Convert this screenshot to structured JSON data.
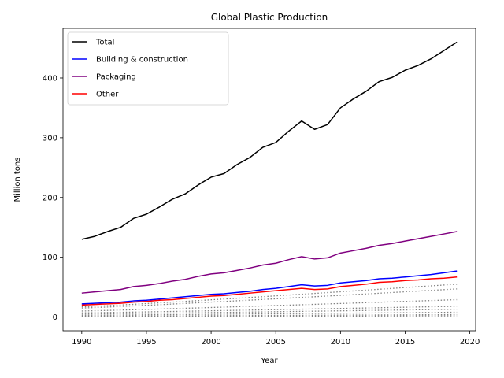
{
  "chart_data": {
    "type": "line",
    "title": "Global Plastic Production",
    "xlabel": "Year",
    "ylabel": "Million tons",
    "xlim": [
      1988.55,
      2020.45
    ],
    "ylim": [
      -23,
      483
    ],
    "xticks": [
      1990,
      1995,
      2000,
      2005,
      2010,
      2015,
      2020
    ],
    "yticks": [
      0,
      100,
      200,
      300,
      400
    ],
    "grid": false,
    "legend_position": "top-left",
    "x": [
      1990,
      1991,
      1992,
      1993,
      1994,
      1995,
      1996,
      1997,
      1998,
      1999,
      2000,
      2001,
      2002,
      2003,
      2004,
      2005,
      2006,
      2007,
      2008,
      2009,
      2010,
      2011,
      2012,
      2013,
      2014,
      2015,
      2016,
      2017,
      2018,
      2019
    ],
    "series": [
      {
        "name": "Total",
        "color": "#000000",
        "values": [
          130,
          135,
          143,
          150,
          165,
          172,
          184,
          197,
          206,
          221,
          234,
          240,
          255,
          267,
          284,
          292,
          311,
          328,
          314,
          322,
          350,
          365,
          378,
          394,
          401,
          413,
          421,
          432,
          446,
          460
        ]
      },
      {
        "name": "Building & construction",
        "color": "#0000ff",
        "values": [
          22,
          23,
          24,
          25,
          27,
          28,
          30,
          32,
          34,
          36,
          38,
          39,
          41,
          43,
          46,
          48,
          51,
          54,
          52,
          53,
          57,
          59,
          61,
          64,
          65,
          67,
          69,
          71,
          74,
          77
        ]
      },
      {
        "name": "Packaging",
        "color": "#800080",
        "values": [
          40,
          42,
          44,
          46,
          51,
          53,
          56,
          60,
          63,
          68,
          72,
          74,
          78,
          82,
          87,
          90,
          96,
          101,
          97,
          99,
          107,
          111,
          115,
          120,
          123,
          127,
          131,
          135,
          139,
          143
        ]
      },
      {
        "name": "Other",
        "color": "#ff0000",
        "values": [
          20,
          21,
          22,
          23,
          25,
          26,
          28,
          29,
          31,
          33,
          35,
          36,
          38,
          40,
          42,
          44,
          46,
          48,
          46,
          47,
          51,
          53,
          55,
          58,
          59,
          61,
          62,
          64,
          65,
          67
        ]
      }
    ],
    "minor_series": [
      {
        "color": "#808080",
        "start": 17,
        "end": 55
      },
      {
        "color": "#808080",
        "start": 15,
        "end": 47
      },
      {
        "color": "#808080",
        "start": 10,
        "end": 29
      },
      {
        "color": "#808080",
        "start": 7,
        "end": 18
      },
      {
        "color": "#808080",
        "start": 5,
        "end": 13
      },
      {
        "color": "#808080",
        "start": 3,
        "end": 8
      },
      {
        "color": "#808080",
        "start": 1.5,
        "end": 4
      },
      {
        "color": "#808080",
        "start": 0.5,
        "end": 2
      }
    ]
  }
}
